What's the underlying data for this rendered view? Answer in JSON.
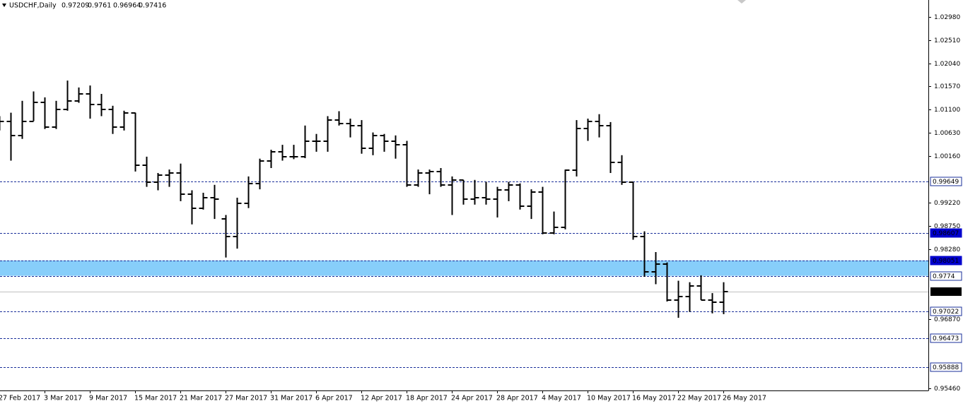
{
  "chart_data": {
    "type": "ohlc",
    "title": "USDCHF,Daily",
    "categories": [
      "27 Feb 2017",
      null,
      null,
      null,
      "3 Mar 2017",
      null,
      null,
      null,
      "9 Mar 2017",
      null,
      null,
      null,
      "15 Mar 2017",
      null,
      null,
      null,
      "21 Mar 2017",
      null,
      null,
      null,
      "27 Mar 2017",
      null,
      null,
      null,
      "31 Mar 2017",
      null,
      null,
      null,
      "6 Apr 2017",
      null,
      null,
      null,
      "12 Apr 2017",
      null,
      null,
      null,
      "18 Apr 2017",
      null,
      null,
      null,
      "24 Apr 2017",
      null,
      null,
      null,
      "28 Apr 2017",
      null,
      null,
      null,
      "4 May 2017",
      null,
      null,
      null,
      "10 May 2017",
      null,
      null,
      null,
      "16 May 2017",
      null,
      null,
      null,
      "22 May 2017",
      null,
      null,
      null,
      "26 May 2017"
    ],
    "open": [
      1.0078,
      1.0087,
      1.0057,
      1.0087,
      1.0125,
      1.0075,
      1.0111,
      1.0128,
      1.0142,
      1.0121,
      1.0111,
      1.0075,
      1.0104,
      0.9997,
      0.9964,
      0.9978,
      0.9982,
      0.9939,
      0.9911,
      0.9932,
      0.9889,
      0.9854,
      0.9921,
      0.9961,
      1.0007,
      1.0025,
      1.0015,
      1.0015,
      1.0047,
      1.0047,
      1.0089,
      1.0082,
      1.0078,
      1.0032,
      1.0058,
      1.0047,
      1.0039,
      0.9958,
      0.9982,
      0.9985,
      0.9958,
      0.9968,
      0.9929,
      0.9932,
      0.9929,
      0.9947,
      0.9958,
      0.9915,
      0.9944,
      0.9861,
      0.9872,
      0.9987,
      1.0072,
      1.0087,
      1.0078,
      1.0004,
      0.9964,
      0.9854,
      0.9782,
      0.9797,
      0.9725,
      0.9732,
      0.9754,
      0.9725,
      0.97209
    ],
    "high": [
      1.0097,
      1.0104,
      1.0128,
      1.0147,
      1.0135,
      1.0128,
      1.0169,
      1.0155,
      1.0159,
      1.0142,
      1.0118,
      1.0108,
      1.0104,
      1.0015,
      0.9982,
      0.9989,
      1.0001,
      0.9947,
      0.9942,
      0.9958,
      0.9897,
      0.9932,
      0.9975,
      1.0011,
      1.0029,
      1.0039,
      1.0039,
      1.0078,
      1.0061,
      1.0097,
      1.0107,
      1.0092,
      1.0089,
      1.0064,
      1.0061,
      1.0058,
      1.0047,
      0.9989,
      0.9989,
      0.9992,
      0.9975,
      0.9968,
      0.9968,
      0.9964,
      0.9954,
      0.9964,
      0.9961,
      0.9949,
      0.9954,
      0.9904,
      0.9989,
      1.0089,
      1.0092,
      1.0101,
      1.0085,
      1.0018,
      0.9964,
      0.9864,
      0.9822,
      0.9801,
      0.9764,
      0.9761,
      0.9775,
      0.9739,
      0.9761
    ],
    "low": [
      1.0068,
      1.0007,
      1.0051,
      1.0087,
      1.0071,
      1.0071,
      1.0108,
      1.0124,
      1.0092,
      1.0097,
      1.0061,
      1.0068,
      0.9985,
      0.9954,
      0.9947,
      0.9954,
      0.9925,
      0.9878,
      0.9908,
      0.9889,
      0.9811,
      0.9829,
      0.9911,
      0.9949,
      0.9992,
      1.0007,
      1.001,
      1.0012,
      1.0025,
      1.0025,
      1.0078,
      1.0054,
      1.0021,
      1.0018,
      1.0025,
      1.0011,
      0.9954,
      0.9954,
      0.9939,
      0.9954,
      0.9897,
      0.9918,
      0.9918,
      0.9918,
      0.9892,
      0.9925,
      0.9908,
      0.9889,
      0.9858,
      0.9858,
      0.9868,
      0.9975,
      1.0047,
      1.0054,
      0.9982,
      0.9958,
      0.9847,
      0.9772,
      0.9757,
      0.9722,
      0.9689,
      0.9701,
      0.9725,
      0.9698,
      0.96964
    ],
    "close": [
      1.0087,
      1.0057,
      1.0087,
      1.0125,
      1.0075,
      1.0111,
      1.0128,
      1.0142,
      1.0121,
      1.0111,
      1.0075,
      1.0104,
      0.9997,
      0.9964,
      0.9978,
      0.9982,
      0.9939,
      0.9911,
      0.9932,
      0.9929,
      0.9854,
      0.9921,
      0.9961,
      1.0007,
      1.0025,
      1.0015,
      1.0015,
      1.0047,
      1.0047,
      1.0089,
      1.0082,
      1.0078,
      1.0032,
      1.0058,
      1.0047,
      1.0039,
      0.9958,
      0.9982,
      0.9985,
      0.9958,
      0.9968,
      0.9929,
      0.9932,
      0.9929,
      0.9947,
      0.9958,
      0.9915,
      0.9944,
      0.9861,
      0.9872,
      0.9987,
      1.0072,
      1.0087,
      1.0078,
      1.0004,
      0.9964,
      0.9854,
      0.9782,
      0.9797,
      0.9725,
      0.9732,
      0.9754,
      0.9725,
      0.9721,
      0.97416
    ],
    "color": "#000000",
    "ylim": [
      0.9542,
      1.0332
    ],
    "yticks": [
      {
        "value": 1.0298,
        "label": "1.02980"
      },
      {
        "value": 1.0251,
        "label": "1.02510"
      },
      {
        "value": 1.0204,
        "label": "1.02040"
      },
      {
        "value": 1.0157,
        "label": "1.01570"
      },
      {
        "value": 1.011,
        "label": "1.01100"
      },
      {
        "value": 1.0063,
        "label": "1.00630"
      },
      {
        "value": 1.0016,
        "label": "1.00160"
      },
      {
        "value": 0.9922,
        "label": "0.99220"
      },
      {
        "value": 0.9875,
        "label": "0.98750"
      },
      {
        "value": 0.9828,
        "label": "0.98280"
      },
      {
        "value": 0.9687,
        "label": "0.96870"
      },
      {
        "value": 0.9546,
        "label": "0.95460"
      }
    ],
    "levels": [
      0.99649,
      0.98607,
      0.97022,
      0.96473,
      0.95888
    ],
    "level_label_bg": [
      "#ffffff",
      "#0000cd",
      "#ffffff",
      "#ffffff",
      "#ffffff"
    ],
    "zone": [
      0.98051,
      0.9774
    ],
    "zone_color": "#87cefa",
    "zone_label_bg": [
      "#0000cd",
      "#ffffff"
    ],
    "level_color": "#1a2f9a",
    "price_line_color": "#c0c0c0"
  }
}
